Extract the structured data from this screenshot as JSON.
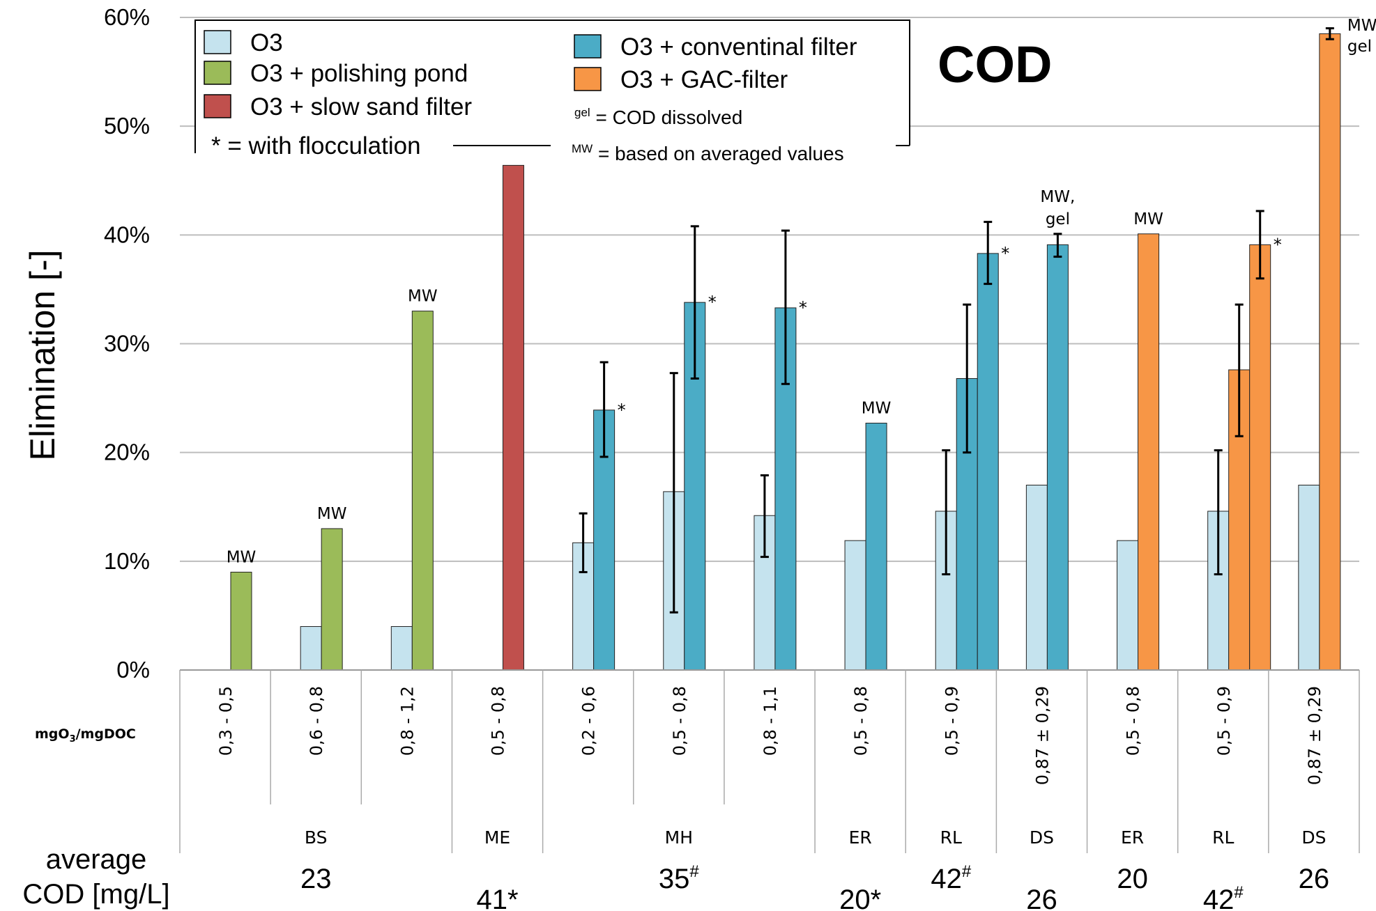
{
  "chart_data": {
    "type": "bar",
    "title": "COD",
    "ylabel": "Elimination [-]",
    "ylim": [
      0,
      0.6
    ],
    "yticks": [
      "0%",
      "10%",
      "20%",
      "30%",
      "40%",
      "50%",
      "60%"
    ],
    "grid": true,
    "legend_placement": "top-left",
    "x_row_label": "mgO3/mgDOC",
    "legend": {
      "items": [
        {
          "label": "O3",
          "color": "#c5e3ee"
        },
        {
          "label": "O3 + polishing pond",
          "color": "#9bbb59"
        },
        {
          "label": "O3 + slow sand filter",
          "color": "#c0504d"
        },
        {
          "label": "O3 + conventinal filter",
          "color": "#4bacc6"
        },
        {
          "label": "O3 + GAC-filter",
          "color": "#f79646"
        }
      ],
      "notes": {
        "flocculation": "* = with flocculation",
        "gel_sup": "gel",
        "gel_text": " = COD dissolved",
        "mw_sup": "MW",
        "mw_text": " = based on averaged values"
      }
    },
    "categories": [
      "0,3 - 0,5",
      "0,6 - 0,8",
      "0,8 - 1,2",
      "0,5 - 0,8",
      "0,2 - 0,6",
      "0,5 - 0,8",
      "0,8 - 1,1",
      "0,5 - 0,8",
      "0,5 - 0,9",
      "0,87 ± 0,29",
      "0,5 - 0,8",
      "0,5 - 0,9",
      "0,87 ± 0,29"
    ],
    "bars": [
      {
        "cat": 0,
        "slot": 1,
        "series": "O3 + polishing pond",
        "value": 0.09,
        "label": "MW"
      },
      {
        "cat": 1,
        "slot": 0,
        "series": "O3",
        "value": 0.04
      },
      {
        "cat": 1,
        "slot": 1,
        "series": "O3 + polishing pond",
        "value": 0.13,
        "label": "MW"
      },
      {
        "cat": 2,
        "slot": 0,
        "series": "O3",
        "value": 0.04
      },
      {
        "cat": 2,
        "slot": 1,
        "series": "O3 + polishing pond",
        "value": 0.33,
        "label": "MW"
      },
      {
        "cat": 3,
        "slot": 1,
        "series": "O3 + slow sand filter",
        "value": 0.464
      },
      {
        "cat": 4,
        "slot": 0,
        "series": "O3",
        "value": 0.117,
        "err": [
          0.09,
          0.144
        ]
      },
      {
        "cat": 4,
        "slot": 1,
        "series": "O3 + conventinal filter",
        "value": 0.239,
        "err": [
          0.196,
          0.283
        ],
        "label": "*"
      },
      {
        "cat": 5,
        "slot": 0,
        "series": "O3",
        "value": 0.164,
        "err": [
          0.053,
          0.273
        ]
      },
      {
        "cat": 5,
        "slot": 1,
        "series": "O3 + conventinal filter",
        "value": 0.338,
        "err": [
          0.268,
          0.408
        ],
        "label": "*"
      },
      {
        "cat": 6,
        "slot": 0,
        "series": "O3",
        "value": 0.142,
        "err": [
          0.104,
          0.179
        ]
      },
      {
        "cat": 6,
        "slot": 1,
        "series": "O3 + conventinal filter",
        "value": 0.333,
        "err": [
          0.263,
          0.404
        ],
        "label": "*"
      },
      {
        "cat": 7,
        "slot": 0,
        "series": "O3",
        "value": 0.119
      },
      {
        "cat": 7,
        "slot": 1,
        "series": "O3 + conventinal filter",
        "value": 0.227,
        "label": "MW"
      },
      {
        "cat": 8,
        "slot": 0,
        "series": "O3",
        "value": 0.146,
        "err": [
          0.088,
          0.202
        ]
      },
      {
        "cat": 8,
        "slot": 1,
        "series": "O3 + conventinal filter",
        "value": 0.268,
        "err": [
          0.2,
          0.336
        ]
      },
      {
        "cat": 8,
        "slot": 2,
        "series": "O3 + conventinal filter",
        "value": 0.383,
        "err": [
          0.355,
          0.412
        ],
        "label": "*"
      },
      {
        "cat": 9,
        "slot": 0,
        "series": "O3",
        "value": 0.17
      },
      {
        "cat": 9,
        "slot": 1,
        "series": "O3 + conventinal filter",
        "value": 0.391,
        "err": [
          0.38,
          0.401
        ],
        "label": "MW,\ngel"
      },
      {
        "cat": 10,
        "slot": 0,
        "series": "O3",
        "value": 0.119
      },
      {
        "cat": 10,
        "slot": 1,
        "series": "O3 + GAC-filter",
        "value": 0.401,
        "label": "MW"
      },
      {
        "cat": 11,
        "slot": 0,
        "series": "O3",
        "value": 0.146,
        "err": [
          0.088,
          0.202
        ]
      },
      {
        "cat": 11,
        "slot": 1,
        "series": "O3 + GAC-filter",
        "value": 0.276,
        "err": [
          0.215,
          0.336
        ]
      },
      {
        "cat": 11,
        "slot": 2,
        "series": "O3 + GAC-filter",
        "value": 0.391,
        "err": [
          0.36,
          0.422
        ],
        "label": "*"
      },
      {
        "cat": 12,
        "slot": 0,
        "series": "O3",
        "value": 0.17
      },
      {
        "cat": 12,
        "slot": 1,
        "series": "O3 + GAC-filter",
        "value": 0.585,
        "err": [
          0.58,
          0.59
        ],
        "label": "MW,\ngel"
      }
    ],
    "groups": [
      {
        "label": "BS",
        "from": 0,
        "to": 2
      },
      {
        "label": "ME",
        "from": 3,
        "to": 3
      },
      {
        "label": "MH",
        "from": 4,
        "to": 6
      },
      {
        "label": "ER",
        "from": 7,
        "to": 7
      },
      {
        "label": "RL",
        "from": 8,
        "to": 8
      },
      {
        "label": "DS",
        "from": 9,
        "to": 9
      },
      {
        "label": "ER",
        "from": 10,
        "to": 10
      },
      {
        "label": "RL",
        "from": 11,
        "to": 11
      },
      {
        "label": "DS",
        "from": 12,
        "to": 12
      }
    ],
    "avg_cod": {
      "label_line1": "average",
      "label_line2": "COD [mg/L]",
      "values": [
        {
          "text": "23",
          "cat": 1,
          "row": 0
        },
        {
          "text": "41*",
          "cat": 3,
          "row": 1
        },
        {
          "text": "35#",
          "cat": 5,
          "row": 0
        },
        {
          "text": "20*",
          "cat": 7,
          "row": 1
        },
        {
          "text": "42#",
          "cat": 8,
          "row": 0
        },
        {
          "text": "26",
          "cat": 9,
          "row": 1
        },
        {
          "text": "20",
          "cat": 10,
          "row": 0
        },
        {
          "text": "42#",
          "cat": 11,
          "row": 1
        },
        {
          "text": "26",
          "cat": 12,
          "row": 0
        }
      ]
    }
  }
}
